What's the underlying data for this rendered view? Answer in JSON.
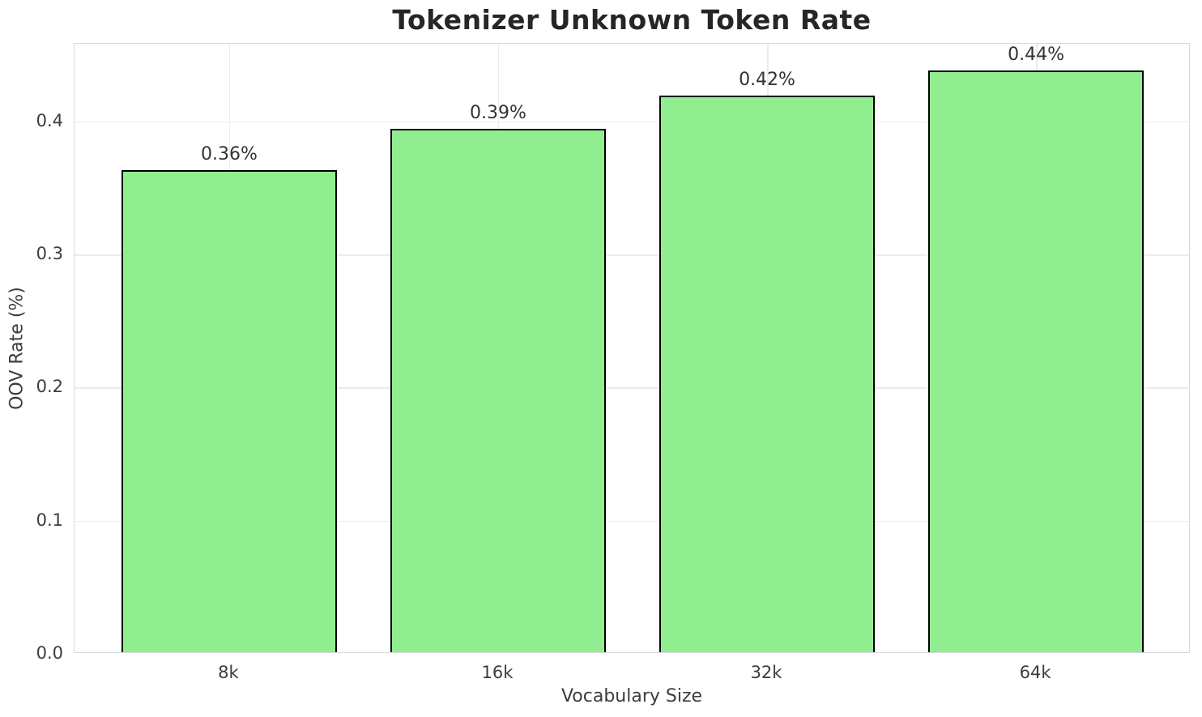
{
  "chart_data": {
    "type": "bar",
    "title": "Tokenizer Unknown Token Rate",
    "xlabel": "Vocabulary Size",
    "ylabel": "OOV Rate (%)",
    "categories": [
      "8k",
      "16k",
      "32k",
      "64k"
    ],
    "values": [
      0.362,
      0.393,
      0.418,
      0.437
    ],
    "bar_value_labels": [
      "0.36%",
      "0.39%",
      "0.42%",
      "0.44%"
    ],
    "ylim": [
      0,
      0.4583
    ],
    "ytick_labels": [
      "0.0",
      "0.1",
      "0.2",
      "0.3",
      "0.4"
    ],
    "grid": "on",
    "legend_position": "none",
    "colors": {
      "bar_fill": "#90EE90",
      "bar_edge": "#000000",
      "grid": "#ececec",
      "spine": "#d9d9d9",
      "title_text": "#262626",
      "tick_text": "#3d3d3d",
      "label_text": "#333333",
      "background": "#ffffff"
    }
  }
}
